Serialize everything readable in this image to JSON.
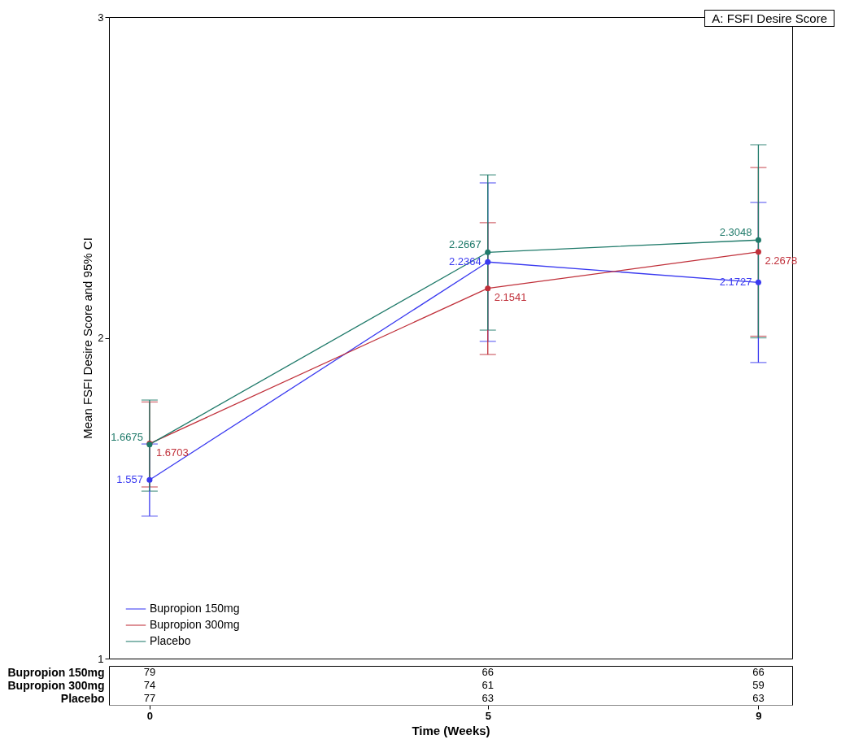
{
  "chart_data": {
    "type": "line",
    "ylabel": "Mean FSFI Desire Score and 95% CI",
    "xlabel": "Time (Weeks)",
    "x": [
      0,
      5,
      9
    ],
    "xlim": [
      -0.6,
      9.5
    ],
    "xticks": [
      0,
      5,
      9
    ],
    "ylim": [
      1,
      3
    ],
    "yticks": [
      {
        "value": 1,
        "label": "1"
      },
      {
        "value": 2,
        "label": "2"
      },
      {
        "value": 3,
        "label": "3"
      }
    ],
    "series": [
      {
        "name": "Bupropion 150mg",
        "color": "#3a3af0",
        "values": [
          1.557,
          2.2364,
          2.1727
        ],
        "errors": [
          [
            1.444,
            1.669
          ],
          [
            1.989,
            2.483
          ],
          [
            1.923,
            2.422
          ]
        ]
      },
      {
        "name": "Bupropion 300mg",
        "color": "#c0303a",
        "values": [
          1.6703,
          2.1541,
          2.2678
        ],
        "errors": [
          [
            1.535,
            1.8
          ],
          [
            1.948,
            2.359
          ],
          [
            2.005,
            2.531
          ]
        ]
      },
      {
        "name": "Placebo",
        "color": "#1f7a6a",
        "values": [
          1.6675,
          2.2667,
          2.3048
        ],
        "errors": [
          [
            1.522,
            1.806
          ],
          [
            2.024,
            2.508
          ],
          [
            2.0,
            2.602
          ]
        ]
      }
    ],
    "annotations": [
      "A: FSFI Desire Score",
      "Bupropion 150mg",
      "79",
      "66",
      "66",
      "Bupropion 300mg",
      "74",
      "61",
      "59",
      "Placebo",
      "77",
      "63",
      "63"
    ],
    "data_labels": true,
    "grid": false,
    "legend": "bottom left",
    "marker": "circle",
    "line_style": "solid"
  }
}
